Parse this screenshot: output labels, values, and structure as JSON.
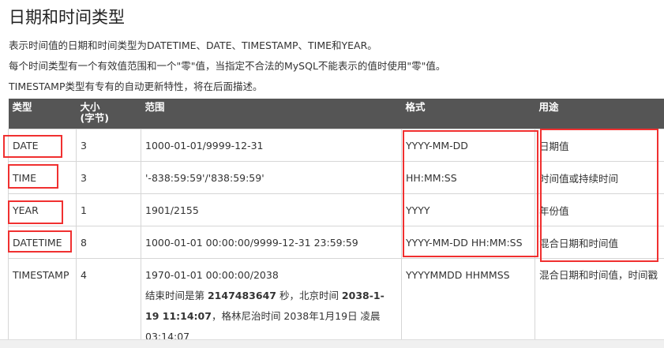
{
  "title": "日期和时间类型",
  "paragraphs": [
    "表示时间值的日期和时间类型为DATETIME、DATE、TIMESTAMP、TIME和YEAR。",
    "每个时间类型有一个有效值范围和一个\"零\"值，当指定不合法的MySQL不能表示的值时使用\"零\"值。",
    "TIMESTAMP类型有专有的自动更新特性，将在后面描述。"
  ],
  "headers": [
    "类型",
    "大小",
    "(字节)",
    "范围",
    "格式",
    "用途"
  ],
  "rows": [
    {
      "type": "DATE",
      "size": "3",
      "range": "1000-01-01/9999-12-31",
      "format": "YYYY-MM-DD",
      "use": "日期值"
    },
    {
      "type": "TIME",
      "size": "3",
      "range": "'-838:59:59'/'838:59:59'",
      "format": "HH:MM:SS",
      "use": "时间值或持续时间"
    },
    {
      "type": "YEAR",
      "size": "1",
      "range": "1901/2155",
      "format": "YYYY",
      "use": "年份值"
    },
    {
      "type": "DATETIME",
      "size": "8",
      "range": "1000-01-01 00:00:00/9999-12-31 23:59:59",
      "format": "YYYY-MM-DD HH:MM:SS",
      "use": "混合日期和时间值"
    },
    {
      "type": "TIMESTAMP",
      "size": "4",
      "range": "1970-01-01 00:00:00/2038",
      "range_note": {
        "a": "结束时间是第 ",
        "b": "2147483647",
        "c": " 秒，北京时间 ",
        "d": "2038-1-19 11:14:07",
        "e": "，格林尼治时间 2038年1月19日 凌晨 03:14:07"
      },
      "format": "YYYYMMDD HHMMSS",
      "use": "混合日期和时间值，时间戳"
    }
  ],
  "highlight_color": "#f03030"
}
